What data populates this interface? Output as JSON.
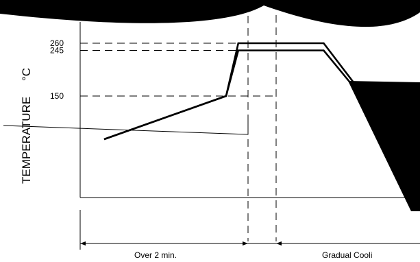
{
  "chart_data": {
    "type": "line",
    "title": "",
    "ylabel": "TEMPERATURE",
    "ylabel_unit": "°C",
    "y_ticks": [
      260,
      245,
      150
    ],
    "ylim": [
      0,
      270
    ],
    "grid": false,
    "reference_levels": [
      260,
      245,
      150
    ],
    "series": [
      {
        "x": [
          0,
          1,
          1.1,
          1.8,
          2.4,
          3.8
        ],
        "y": [
          60,
          150,
          260,
          260,
          60,
          20
        ]
      },
      {
        "x": [
          0,
          1,
          1.1,
          1.8,
          2.4,
          3.8
        ],
        "y": [
          60,
          150,
          245,
          245,
          60,
          20
        ]
      }
    ],
    "time_spans": [
      {
        "label": "Over 2 min."
      },
      {
        "label": ""
      },
      {
        "label": "Gradual Cooli"
      }
    ]
  }
}
